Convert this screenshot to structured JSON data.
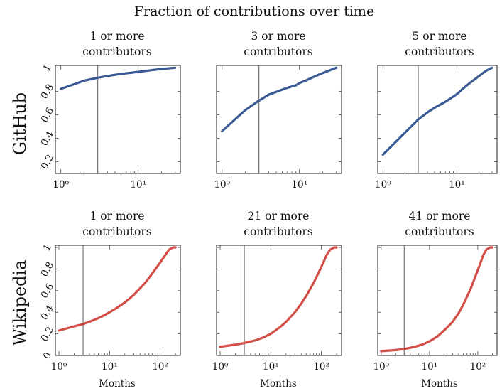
{
  "figure_title": "Fraction of contributions over time",
  "colors": {
    "github": "#3b5a94",
    "wikipedia": "#d24e46"
  },
  "rows": [
    {
      "label": "GitHub",
      "panels": [
        {
          "title_line1": "1 or more",
          "title_line2": "contributors"
        },
        {
          "title_line1": "3 or more",
          "title_line2": "contributors"
        },
        {
          "title_line1": "5 or more",
          "title_line2": "contributors"
        }
      ]
    },
    {
      "label": "Wikipedia",
      "panels": [
        {
          "title_line1": "1 or more",
          "title_line2": "contributors"
        },
        {
          "title_line1": "21 or more",
          "title_line2": "contributors"
        },
        {
          "title_line1": "41 or more",
          "title_line2": "contributors"
        }
      ]
    }
  ],
  "xlabel": "Months",
  "chart_data": [
    {
      "type": "line",
      "row": "GitHub",
      "title": "1 or more contributors",
      "xscale": "log",
      "xlim": [
        0.85,
        35
      ],
      "ylim": [
        0.1,
        1.02
      ],
      "yticks": [
        0.2,
        0.4,
        0.6,
        0.8,
        1
      ],
      "ytick_labels": [
        "0.2",
        "0.4",
        "0.6",
        "0.8",
        "1"
      ],
      "xticks": [
        1,
        10
      ],
      "xtick_labels": [
        "10⁰",
        "10¹"
      ],
      "vline_x": 3,
      "series": [
        {
          "name": "GitHub",
          "x": [
            1,
            2,
            3,
            4,
            5,
            7,
            10,
            15,
            20,
            30
          ],
          "y": [
            0.82,
            0.89,
            0.915,
            0.93,
            0.94,
            0.953,
            0.965,
            0.98,
            0.99,
            1.0
          ]
        }
      ]
    },
    {
      "type": "line",
      "row": "GitHub",
      "title": "3 or more contributors",
      "xscale": "log",
      "xlim": [
        0.85,
        35
      ],
      "ylim": [
        0.1,
        1.02
      ],
      "yticks": [
        0.2,
        0.4,
        0.6,
        0.8,
        1
      ],
      "ytick_labels": [
        "0.2",
        "0.4",
        "0.6",
        "0.8",
        "1"
      ],
      "xticks": [
        1,
        10
      ],
      "xtick_labels": [
        "10⁰",
        "10¹"
      ],
      "vline_x": 3,
      "series": [
        {
          "name": "GitHub",
          "x": [
            1,
            2,
            3,
            4,
            5,
            7,
            9,
            10,
            12,
            15,
            20,
            25,
            30
          ],
          "y": [
            0.46,
            0.64,
            0.72,
            0.77,
            0.795,
            0.83,
            0.85,
            0.87,
            0.89,
            0.92,
            0.955,
            0.98,
            1.0
          ]
        }
      ]
    },
    {
      "type": "line",
      "row": "GitHub",
      "title": "5 or more contributors",
      "xscale": "log",
      "xlim": [
        0.85,
        35
      ],
      "ylim": [
        0.1,
        1.02
      ],
      "yticks": [
        0.2,
        0.4,
        0.6,
        0.8,
        1
      ],
      "ytick_labels": [
        "0.2",
        "0.4",
        "0.6",
        "0.8",
        "1"
      ],
      "xticks": [
        1,
        10
      ],
      "xtick_labels": [
        "10⁰",
        "10¹"
      ],
      "vline_x": 3,
      "series": [
        {
          "name": "GitHub",
          "x": [
            1,
            2,
            3,
            4,
            5,
            7,
            10,
            12,
            15,
            20,
            25,
            30
          ],
          "y": [
            0.26,
            0.45,
            0.56,
            0.62,
            0.66,
            0.71,
            0.775,
            0.82,
            0.87,
            0.93,
            0.975,
            1.0
          ]
        }
      ]
    },
    {
      "type": "line",
      "row": "Wikipedia",
      "title": "1 or more contributors",
      "xscale": "log",
      "xlim": [
        0.85,
        250
      ],
      "ylim": [
        0,
        1.02
      ],
      "yticks": [
        0,
        0.2,
        0.4,
        0.6,
        0.8,
        1
      ],
      "ytick_labels": [
        "0",
        "0.2",
        "0.4",
        "0.6",
        "0.8",
        "1"
      ],
      "xticks": [
        1,
        10,
        100
      ],
      "xtick_labels": [
        "10⁰",
        "10¹",
        "10²"
      ],
      "vline_x": 3,
      "series": [
        {
          "name": "Wikipedia",
          "x": [
            1,
            2,
            3,
            5,
            7,
            10,
            15,
            20,
            30,
            50,
            70,
            100,
            130,
            150,
            180,
            200
          ],
          "y": [
            0.23,
            0.27,
            0.29,
            0.33,
            0.36,
            0.4,
            0.45,
            0.49,
            0.56,
            0.67,
            0.76,
            0.86,
            0.94,
            0.98,
            1.0,
            1.0
          ]
        }
      ]
    },
    {
      "type": "line",
      "row": "Wikipedia",
      "title": "21 or more contributors",
      "xscale": "log",
      "xlim": [
        0.85,
        250
      ],
      "ylim": [
        0,
        1.02
      ],
      "yticks": [
        0,
        0.2,
        0.4,
        0.6,
        0.8,
        1
      ],
      "ytick_labels": [
        "0",
        "0.2",
        "0.4",
        "0.6",
        "0.8",
        "1"
      ],
      "xticks": [
        1,
        10,
        100
      ],
      "xtick_labels": [
        "10⁰",
        "10¹",
        "10²"
      ],
      "vline_x": 3,
      "series": [
        {
          "name": "Wikipedia",
          "x": [
            1,
            2,
            3,
            5,
            7,
            10,
            15,
            20,
            30,
            40,
            50,
            70,
            100,
            130,
            150,
            180,
            200
          ],
          "y": [
            0.08,
            0.1,
            0.115,
            0.14,
            0.165,
            0.2,
            0.26,
            0.31,
            0.4,
            0.48,
            0.55,
            0.67,
            0.82,
            0.94,
            0.98,
            1.0,
            1.0
          ]
        }
      ]
    },
    {
      "type": "line",
      "row": "Wikipedia",
      "title": "41 or more contributors",
      "xscale": "log",
      "xlim": [
        0.85,
        250
      ],
      "ylim": [
        0,
        1.02
      ],
      "yticks": [
        0,
        0.2,
        0.4,
        0.6,
        0.8,
        1
      ],
      "ytick_labels": [
        "0",
        "0.2",
        "0.4",
        "0.6",
        "0.8",
        "1"
      ],
      "xticks": [
        1,
        10,
        100
      ],
      "xtick_labels": [
        "10⁰",
        "10¹",
        "10²"
      ],
      "vline_x": 3,
      "series": [
        {
          "name": "Wikipedia",
          "x": [
            1,
            2,
            3,
            5,
            7,
            10,
            15,
            20,
            30,
            40,
            50,
            70,
            100,
            130,
            150,
            180,
            200
          ],
          "y": [
            0.04,
            0.05,
            0.06,
            0.08,
            0.1,
            0.13,
            0.18,
            0.23,
            0.31,
            0.39,
            0.47,
            0.61,
            0.79,
            0.93,
            0.98,
            1.0,
            1.0
          ]
        }
      ]
    }
  ]
}
